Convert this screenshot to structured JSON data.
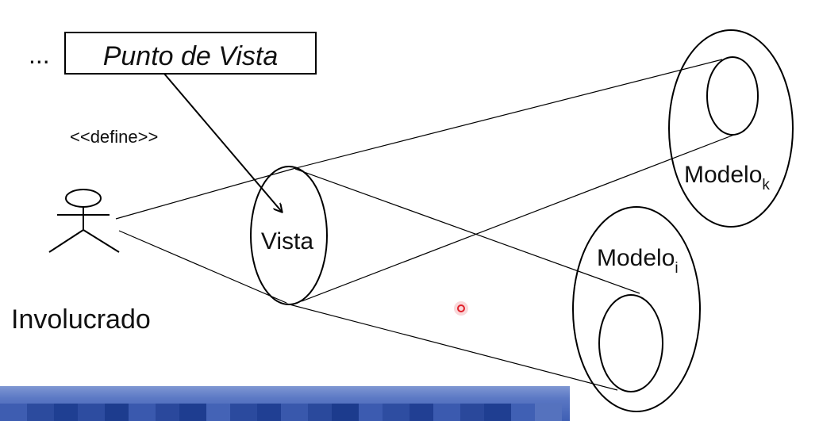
{
  "ellipsis": "...",
  "viewpoint_box": {
    "label": "Punto de Vista"
  },
  "define_label": "<<define>>",
  "actor": {
    "label": "Involucrado"
  },
  "vista": {
    "label": "Vista"
  },
  "model_k": {
    "label": "Modelo",
    "subscript": "k"
  },
  "model_i": {
    "label": "Modelo",
    "subscript": "i"
  },
  "colors": {
    "stroke": "#000000",
    "pointer": "#e0202a",
    "bar_light": "#7f97d3",
    "bar_dark": "#3f5fb4"
  }
}
